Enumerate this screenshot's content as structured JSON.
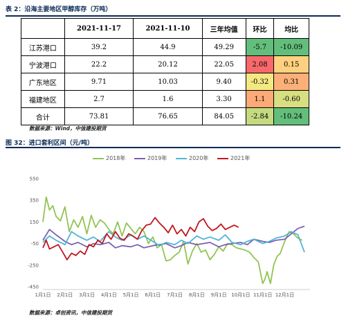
{
  "table": {
    "caption": "表 2：沿海主要地区甲醇库存（万吨）",
    "headers": [
      "",
      "2021-11-17",
      "2021-11-10",
      "三年均值",
      "环比",
      "均比"
    ],
    "rows": [
      {
        "region": "江苏港口",
        "d1117": "39.2",
        "d1110": "44.9",
        "avg3y": "49.29",
        "mom": "-5.7",
        "vs_avg": "-10.09",
        "mom_color": "#63be7b",
        "avg_color": "#63be7b"
      },
      {
        "region": "宁波港口",
        "d1117": "22.2",
        "d1110": "20.12",
        "avg3y": "22.05",
        "mom": "2.08",
        "vs_avg": "0.15",
        "mom_color": "#f8696b",
        "avg_color": "#fdd17f"
      },
      {
        "region": "广东地区",
        "d1117": "9.71",
        "d1110": "10.03",
        "avg3y": "9.40",
        "mom": "-0.32",
        "vs_avg": "0.31",
        "mom_color": "#f4e883",
        "avg_color": "#fcb079"
      },
      {
        "region": "福建地区",
        "d1117": "2.7",
        "d1110": "1.6",
        "avg3y": "3.30",
        "mom": "1.1",
        "vs_avg": "-0.60",
        "mom_color": "#fcaa77",
        "avg_color": "#d7df81"
      },
      {
        "region": "合计",
        "d1117": "73.81",
        "d1110": "76.65",
        "avg3y": "84.05",
        "mom": "-2.84",
        "vs_avg": "-10.24",
        "mom_color": "#c5da80",
        "avg_color": "#63be7b"
      }
    ],
    "source": "数据来源：Wind，中信建投期货"
  },
  "chart": {
    "caption": "图 32：进口套利区间（元/吨）",
    "source": "数据来源：卓创资讯，中信建投期货"
  },
  "chart_data": {
    "type": "line",
    "ylim": [
      -450,
      550
    ],
    "yticks": [
      550,
      350,
      150,
      -50,
      -250,
      -450
    ],
    "xticks": [
      "1月1日",
      "2月1日",
      "3月1日",
      "4月1日",
      "5月1日",
      "6月1日",
      "7月1日",
      "8月1日",
      "9月1日",
      "10月1日",
      "11月1日",
      "12月1日"
    ],
    "x_unit": "month index (0 = 1月1日, 11 = 12月1日)",
    "grid": false,
    "legend": "top",
    "series": [
      {
        "name": "2018年",
        "color": "#92c353",
        "x": [
          0,
          0.15,
          0.3,
          0.45,
          0.6,
          0.8,
          1,
          1.2,
          1.4,
          1.6,
          1.8,
          2,
          2.2,
          2.4,
          2.6,
          2.8,
          3,
          3.2,
          3.4,
          3.6,
          3.8,
          4,
          4.2,
          4.4,
          4.6,
          4.8,
          5,
          5.2,
          5.4,
          5.6,
          5.8,
          6,
          6.2,
          6.4,
          6.6,
          6.8,
          7,
          7.2,
          7.4,
          7.6,
          7.8,
          8,
          8.2,
          8.4,
          8.6,
          8.8,
          9,
          9.2,
          9.4,
          9.6,
          9.8,
          10,
          10.1,
          10.2,
          10.35,
          10.5,
          10.65,
          10.8,
          11,
          11.2,
          11.4,
          11.6,
          11.8
        ],
        "y": [
          150,
          380,
          260,
          300,
          200,
          160,
          290,
          60,
          170,
          100,
          200,
          40,
          210,
          100,
          170,
          140,
          80,
          40,
          150,
          20,
          140,
          90,
          40,
          100,
          60,
          -50,
          10,
          -90,
          -60,
          -210,
          -200,
          -160,
          -130,
          -30,
          -240,
          -120,
          -50,
          -130,
          -110,
          -200,
          -150,
          -80,
          -120,
          -50,
          -60,
          -90,
          -100,
          -110,
          -130,
          -180,
          -220,
          -420,
          -380,
          -310,
          -420,
          -250,
          -170,
          -140,
          -30,
          60,
          40,
          0,
          -20
        ]
      },
      {
        "name": "2019年",
        "color": "#7b60b0",
        "x": [
          0,
          0.3,
          0.6,
          1,
          1.3,
          1.6,
          2,
          2.3,
          2.6,
          3,
          3.3,
          3.6,
          4,
          4.3,
          4.6,
          5,
          5.3,
          5.6,
          6,
          6.3,
          6.6,
          7,
          7.3,
          7.6,
          8,
          8.3,
          8.6,
          9,
          9.3,
          9.6,
          10,
          10.3,
          10.6,
          11,
          11.3,
          11.6,
          11.9
        ],
        "y": [
          -20,
          80,
          30,
          -30,
          -60,
          -40,
          -80,
          -50,
          -60,
          -40,
          -90,
          -70,
          -80,
          -60,
          -90,
          -70,
          -60,
          -50,
          -90,
          -70,
          -40,
          -60,
          -50,
          -40,
          -80,
          -60,
          -50,
          -40,
          -60,
          -10,
          -30,
          -40,
          -20,
          -10,
          40,
          90,
          110
        ]
      },
      {
        "name": "2020年",
        "color": "#4fb3d9",
        "x": [
          0,
          0.3,
          0.6,
          1,
          1.3,
          1.6,
          2,
          2.3,
          2.6,
          3,
          3.3,
          3.6,
          4,
          4.3,
          4.6,
          5,
          5.3,
          5.6,
          6,
          6.3,
          6.6,
          7,
          7.3,
          7.6,
          8,
          8.3,
          8.6,
          9,
          9.3,
          9.6,
          10,
          10.3,
          10.6,
          11,
          11.3,
          11.6,
          11.9
        ],
        "y": [
          -40,
          20,
          -20,
          -60,
          60,
          20,
          -20,
          10,
          -30,
          60,
          10,
          -20,
          30,
          -10,
          20,
          -30,
          -70,
          -40,
          -60,
          -20,
          -50,
          20,
          -10,
          10,
          -20,
          30,
          -40,
          -60,
          -30,
          -10,
          -50,
          -30,
          0,
          20,
          60,
          30,
          -130
        ]
      },
      {
        "name": "2021年",
        "color": "#c0161e",
        "x": [
          0,
          0.15,
          0.3,
          0.5,
          0.7,
          0.9,
          1.1,
          1.3,
          1.5,
          1.7,
          1.9,
          2.1,
          2.3,
          2.5,
          2.7,
          2.9,
          3.1,
          3.3,
          3.5,
          3.7,
          3.9,
          4.1,
          4.3,
          4.5,
          4.7,
          4.9,
          5.1,
          5.3,
          5.5,
          5.7,
          5.9,
          6.1,
          6.3,
          6.5,
          6.7,
          6.9,
          7.1,
          7.3,
          7.5,
          7.7,
          7.9,
          8.1,
          8.3,
          8.5,
          8.7,
          8.9
        ],
        "y": [
          -90,
          -20,
          -100,
          -80,
          -60,
          -130,
          -200,
          -140,
          -160,
          -120,
          -150,
          -60,
          -80,
          -20,
          -50,
          40,
          -10,
          60,
          0,
          -20,
          40,
          20,
          -10,
          70,
          120,
          130,
          190,
          140,
          100,
          50,
          120,
          40,
          80,
          20,
          100,
          60,
          150,
          180,
          110,
          70,
          90,
          130,
          80,
          100,
          120,
          100
        ]
      }
    ]
  }
}
